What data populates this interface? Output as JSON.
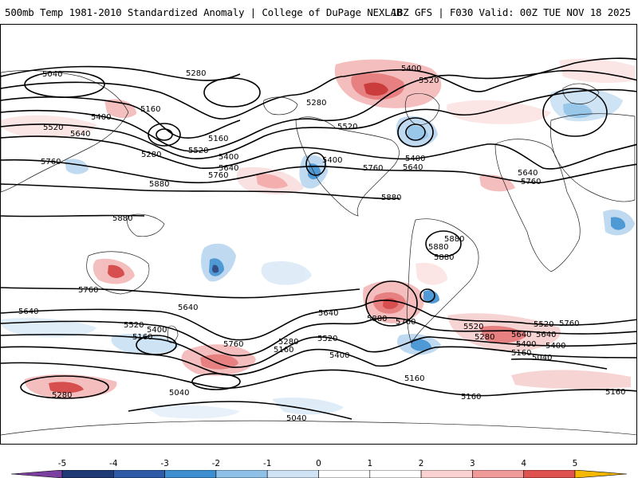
{
  "header": {
    "title_left": "500mb Temp 1981-2010 Standardized Anomaly | College of DuPage NEXLAB",
    "title_right": "18Z GFS | F030 Valid: 00Z TUE NOV 18 2025"
  },
  "map": {
    "contour_labels": [
      {
        "id": "c1",
        "text": "5040"
      },
      {
        "id": "c2",
        "text": "5280"
      },
      {
        "id": "c3",
        "text": "5160"
      },
      {
        "id": "c4",
        "text": "5400"
      },
      {
        "id": "c5",
        "text": "5520"
      },
      {
        "id": "c6",
        "text": "5640"
      },
      {
        "id": "c7",
        "text": "5280"
      },
      {
        "id": "c8",
        "text": "5160"
      },
      {
        "id": "c9",
        "text": "5520"
      },
      {
        "id": "c10",
        "text": "5400"
      },
      {
        "id": "c11",
        "text": "5640"
      },
      {
        "id": "c12",
        "text": "5760"
      },
      {
        "id": "c13",
        "text": "5760"
      },
      {
        "id": "c14",
        "text": "5880"
      },
      {
        "id": "c15",
        "text": "5880"
      },
      {
        "id": "c16",
        "text": "5280"
      },
      {
        "id": "c17",
        "text": "5520"
      },
      {
        "id": "c18",
        "text": "5400"
      },
      {
        "id": "c19",
        "text": "5520"
      },
      {
        "id": "c20",
        "text": "5760"
      },
      {
        "id": "c21",
        "text": "5640"
      },
      {
        "id": "c22",
        "text": "5400"
      },
      {
        "id": "c23",
        "text": "5880"
      },
      {
        "id": "c24",
        "text": "5880"
      },
      {
        "id": "c25",
        "text": "5640"
      },
      {
        "id": "c26",
        "text": "5760"
      },
      {
        "id": "c27",
        "text": "5760"
      },
      {
        "id": "c28",
        "text": "5640"
      },
      {
        "id": "c29",
        "text": "5640"
      },
      {
        "id": "c30",
        "text": "5520"
      },
      {
        "id": "c31",
        "text": "5400"
      },
      {
        "id": "c32",
        "text": "5160"
      },
      {
        "id": "c33",
        "text": "5760"
      },
      {
        "id": "c34",
        "text": "5280"
      },
      {
        "id": "c35",
        "text": "5160"
      },
      {
        "id": "c36",
        "text": "5640"
      },
      {
        "id": "c37",
        "text": "5520"
      },
      {
        "id": "c38",
        "text": "5400"
      },
      {
        "id": "c39",
        "text": "5880"
      },
      {
        "id": "c40",
        "text": "5760"
      },
      {
        "id": "c41",
        "text": "5520"
      },
      {
        "id": "c42",
        "text": "5640"
      },
      {
        "id": "c43",
        "text": "5280"
      },
      {
        "id": "c44",
        "text": "5400"
      },
      {
        "id": "c45",
        "text": "5160"
      },
      {
        "id": "c46",
        "text": "5040"
      },
      {
        "id": "c47",
        "text": "5160"
      },
      {
        "id": "c48",
        "text": "5160"
      },
      {
        "id": "c49",
        "text": "5280"
      },
      {
        "id": "c50",
        "text": "5040"
      },
      {
        "id": "c51",
        "text": "5040"
      },
      {
        "id": "c52",
        "text": "5160"
      },
      {
        "id": "c53",
        "text": "5400"
      },
      {
        "id": "c54",
        "text": "5520"
      },
      {
        "id": "c55",
        "text": "5640"
      },
      {
        "id": "c56",
        "text": "5760"
      },
      {
        "id": "c57",
        "text": "5880"
      },
      {
        "id": "c58",
        "text": "5880"
      },
      {
        "id": "c59",
        "text": "5400"
      }
    ]
  },
  "colorbar": {
    "tick_labels": [
      "-5",
      "-4",
      "-3",
      "-2",
      "-1",
      "0",
      "1",
      "2",
      "3",
      "4",
      "5"
    ],
    "colors": [
      "#7b3fa0",
      "#1f3a75",
      "#2f5aa8",
      "#3d8fd1",
      "#8fc1e8",
      "#cfe3f4",
      "#ffffff",
      "#ffffff",
      "#fad2d2",
      "#f09a9a",
      "#e0524f",
      "#c22027",
      "#8a0d12",
      "#f5b800"
    ]
  }
}
